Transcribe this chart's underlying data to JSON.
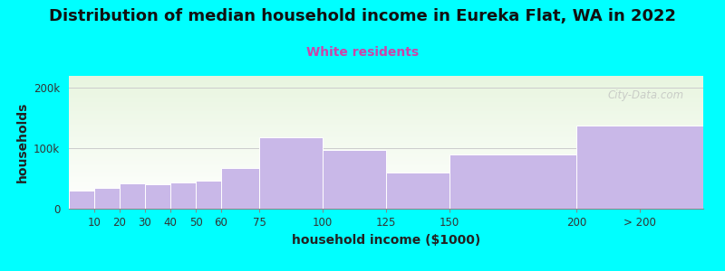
{
  "title": "Distribution of median household income in Eureka Flat, WA in 2022",
  "subtitle": "White residents",
  "xlabel": "household income ($1000)",
  "ylabel": "households",
  "categories": [
    "10",
    "20",
    "30",
    "40",
    "50",
    "60",
    "75",
    "100",
    "125",
    "150",
    "200",
    "> 200"
  ],
  "bar_lefts": [
    0,
    10,
    20,
    30,
    40,
    50,
    60,
    75,
    100,
    125,
    150,
    200
  ],
  "bar_widths": [
    10,
    10,
    10,
    10,
    10,
    10,
    15,
    25,
    25,
    25,
    50,
    50
  ],
  "values": [
    30000,
    35000,
    42000,
    40000,
    44000,
    46000,
    68000,
    118000,
    98000,
    60000,
    90000,
    138000
  ],
  "bar_color": "#c9b8e8",
  "bar_edgecolor": "#ffffff",
  "background_color": "#00ffff",
  "title_fontsize": 13,
  "subtitle_color": "#cc44aa",
  "subtitle_fontsize": 10,
  "yticks": [
    0,
    100000,
    200000
  ],
  "ytick_labels": [
    "0",
    "100k",
    "200k"
  ],
  "ylim": [
    0,
    220000
  ],
  "xlim": [
    0,
    250
  ],
  "xtick_positions": [
    10,
    20,
    30,
    40,
    50,
    60,
    75,
    100,
    125,
    150,
    200,
    225
  ],
  "xtick_labels": [
    "10",
    "20",
    "30",
    "40",
    "50",
    "60",
    "75",
    "100",
    "125",
    "150",
    "200",
    "> 200"
  ],
  "watermark": "City-Data.com"
}
